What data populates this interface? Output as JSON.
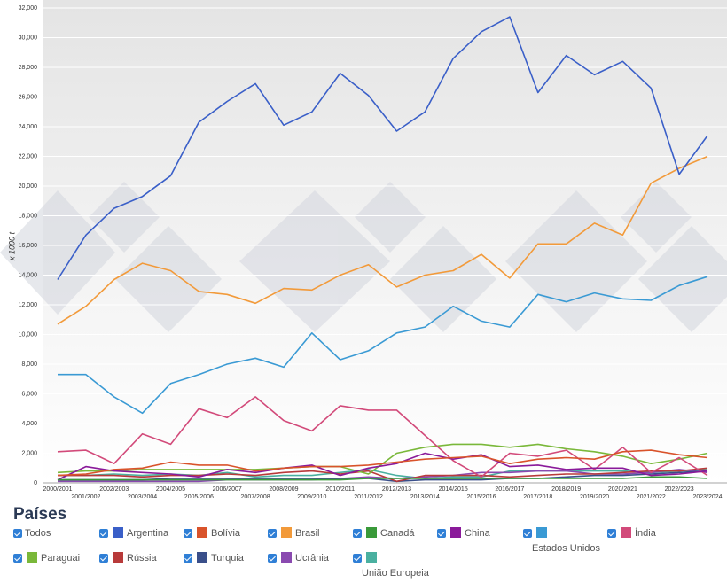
{
  "chart_data": {
    "type": "line",
    "y_label": "x 1000 t",
    "legend_title": "Países",
    "legend_all": "Todos",
    "categories": [
      "2000/2001",
      "2001/2002",
      "2002/2003",
      "2003/2004",
      "2004/2005",
      "2005/2006",
      "2006/2007",
      "2007/2008",
      "2008/2009",
      "2009/2010",
      "2010/2011",
      "2011/2012",
      "2012/2013",
      "2013/2014",
      "2014/2015",
      "2015/2016",
      "2016/2017",
      "2017/2018",
      "2018/2019",
      "2019/2020",
      "2020/2021",
      "2021/2022",
      "2022/2023",
      "2023/2024"
    ],
    "ylim": [
      0,
      32000
    ],
    "yticks": [
      0,
      {
        "value": 2000,
        "label": "2,000"
      },
      {
        "value": 4000,
        "label": "4,000"
      },
      {
        "value": 6000,
        "label": "6,000"
      },
      {
        "value": 8000,
        "label": "8,000"
      },
      {
        "value": 10000,
        "label": "10,000"
      },
      {
        "value": 12000,
        "label": "12,000"
      },
      {
        "value": 14000,
        "label": "14,000"
      },
      {
        "value": 16000,
        "label": "16,000"
      },
      {
        "value": 18000,
        "label": "18,000"
      },
      {
        "value": 20000,
        "label": "20,000"
      },
      {
        "value": 22000,
        "label": "22,000"
      },
      {
        "value": 24000,
        "label": "24,000"
      },
      {
        "value": 26000,
        "label": "26,000"
      },
      {
        "value": 28000,
        "label": "28,000"
      },
      {
        "value": 30000,
        "label": "30,000"
      },
      {
        "value": 32000,
        "label": "32,000"
      }
    ],
    "grid": true,
    "series": [
      {
        "name": "Argentina",
        "color": "#3a5fc8",
        "values": [
          13700,
          16700,
          18500,
          19300,
          20700,
          24300,
          25700,
          26900,
          24100,
          25000,
          27600,
          26100,
          23700,
          25000,
          28600,
          30400,
          31400,
          26300,
          28800,
          27500,
          28400,
          26600,
          20800,
          23400
        ]
      },
      {
        "name": "Bolívia",
        "color": "#d9532b",
        "values": [
          500,
          600,
          900,
          1000,
          1400,
          1200,
          1200,
          800,
          1000,
          1100,
          1100,
          1200,
          1400,
          1600,
          1700,
          1800,
          1300,
          1600,
          1700,
          1600,
          2100,
          2200,
          1900,
          1700
        ]
      },
      {
        "name": "Brasil",
        "color": "#f29a3a",
        "values": [
          10700,
          11900,
          13700,
          14800,
          14300,
          12900,
          12700,
          12100,
          13100,
          13000,
          14000,
          14700,
          13200,
          14000,
          14300,
          15400,
          13800,
          16100,
          16100,
          17500,
          16700,
          20200,
          21200,
          22000
        ]
      },
      {
        "name": "Canadá",
        "color": "#3a9a3a",
        "values": [
          200,
          200,
          200,
          200,
          200,
          200,
          200,
          200,
          200,
          200,
          200,
          300,
          300,
          300,
          300,
          300,
          300,
          300,
          300,
          300,
          300,
          400,
          400,
          300
        ]
      },
      {
        "name": "China",
        "color": "#8a1a9a",
        "values": [
          200,
          1100,
          800,
          700,
          600,
          400,
          900,
          700,
          1000,
          1200,
          500,
          1000,
          1300,
          2000,
          1600,
          1900,
          1100,
          1200,
          900,
          1000,
          1000,
          500,
          600,
          800
        ]
      },
      {
        "name": "Estados Unidos",
        "color": "#3a9ad4",
        "values": [
          7300,
          7300,
          5800,
          4700,
          6700,
          7300,
          8000,
          8400,
          7800,
          10100,
          8300,
          8900,
          10100,
          10500,
          11900,
          10900,
          10500,
          12700,
          12200,
          12800,
          12400,
          12300,
          13300,
          13900
        ]
      },
      {
        "name": "Índia",
        "color": "#d24a7a",
        "values": [
          2100,
          2200,
          1300,
          3300,
          2600,
          5000,
          4400,
          5800,
          4200,
          3500,
          5200,
          4900,
          4900,
          3200,
          1500,
          400,
          2000,
          1800,
          2200,
          900,
          2400,
          700,
          1700,
          500
        ]
      },
      {
        "name": "Paraguai",
        "color": "#7ab83a",
        "values": [
          700,
          800,
          800,
          900,
          900,
          900,
          900,
          900,
          1000,
          1100,
          1100,
          600,
          2000,
          2400,
          2600,
          2600,
          2400,
          2600,
          2300,
          2100,
          1800,
          1300,
          1600,
          2000
        ]
      },
      {
        "name": "Rússia",
        "color": "#b83a3a",
        "values": [
          500,
          500,
          500,
          400,
          500,
          500,
          600,
          500,
          700,
          800,
          600,
          800,
          100,
          500,
          500,
          500,
          400,
          500,
          600,
          600,
          700,
          800,
          800,
          1000
        ]
      },
      {
        "name": "Turquia",
        "color": "#3a4f8a",
        "values": [
          200,
          200,
          200,
          200,
          300,
          300,
          300,
          300,
          300,
          300,
          300,
          300,
          100,
          200,
          200,
          200,
          300,
          300,
          400,
          500,
          500,
          600,
          700,
          800
        ]
      },
      {
        "name": "Ucrânia",
        "color": "#8a4ab0",
        "values": [
          100,
          100,
          100,
          100,
          100,
          100,
          200,
          200,
          200,
          200,
          300,
          400,
          300,
          400,
          500,
          700,
          700,
          800,
          800,
          600,
          600,
          700,
          900,
          700
        ]
      },
      {
        "name": "União Europeia",
        "color": "#4ab0a0",
        "values": [
          500,
          500,
          600,
          500,
          600,
          500,
          700,
          400,
          500,
          500,
          700,
          900,
          500,
          300,
          400,
          400,
          800,
          800,
          800,
          800,
          800,
          700,
          800,
          900
        ]
      }
    ]
  }
}
